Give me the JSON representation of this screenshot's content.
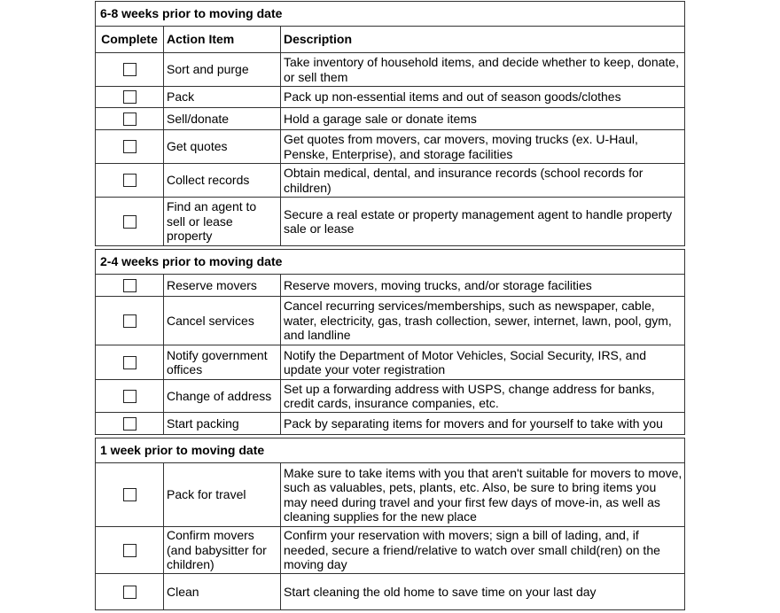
{
  "columns": {
    "complete": "Complete",
    "action": "Action Item",
    "description": "Description"
  },
  "sections": [
    {
      "title": "6-8 weeks prior to moving date",
      "show_header": true,
      "items": [
        {
          "action": "Sort and purge",
          "description": "Take inventory of household items, and decide whether to keep, donate, or sell them",
          "complete": false
        },
        {
          "action": "Pack",
          "description": "Pack up non-essential items and out of season goods/clothes",
          "complete": false
        },
        {
          "action": "Sell/donate",
          "description": "Hold a garage sale or donate items",
          "complete": false
        },
        {
          "action": "Get quotes",
          "description": "Get quotes from movers, car movers, moving trucks (ex. U-Haul, Penske, Enterprise), and storage facilities",
          "complete": false
        },
        {
          "action": "Collect records",
          "description": "Obtain medical, dental, and insurance records (school records for children)",
          "complete": false
        },
        {
          "action": "Find an agent to sell or lease property",
          "description": "Secure a real estate or property management agent to handle property sale or lease",
          "complete": false
        }
      ]
    },
    {
      "title": "2-4 weeks prior to moving date",
      "show_header": false,
      "items": [
        {
          "action": "Reserve movers",
          "description": "Reserve movers, moving trucks, and/or storage facilities",
          "complete": false
        },
        {
          "action": "Cancel services",
          "description": "Cancel recurring services/memberships, such as newspaper, cable, water, electricity, gas, trash collection, sewer, internet, lawn, pool, gym, and landline",
          "complete": false
        },
        {
          "action": "Notify government offices",
          "description": "Notify the Department of Motor Vehicles, Social Security, IRS, and update your voter registration",
          "complete": false
        },
        {
          "action": "Change of address",
          "description": "Set up a forwarding address with USPS, change address for banks, credit cards, insurance companies, etc.",
          "complete": false
        },
        {
          "action": "Start packing",
          "description": "Pack by separating items for movers and for yourself to take with you",
          "complete": false
        }
      ]
    },
    {
      "title": "1 week prior to moving date",
      "show_header": false,
      "items": [
        {
          "action": "Pack for travel",
          "description": "Make sure to take items with you that aren't suitable for movers to move, such as valuables, pets, plants, etc. Also, be sure to bring items you may need during travel and your first few days of move-in, as well as cleaning supplies for the new place",
          "complete": false
        },
        {
          "action": "Confirm movers (and babysitter for children)",
          "description": "Confirm your reservation with movers; sign a bill of lading, and, if needed, secure a friend/relative to watch over small child(ren) on the moving day",
          "complete": false
        },
        {
          "action": "Clean",
          "description": "Start cleaning the old home to save time on your last day",
          "complete": false
        }
      ]
    }
  ]
}
